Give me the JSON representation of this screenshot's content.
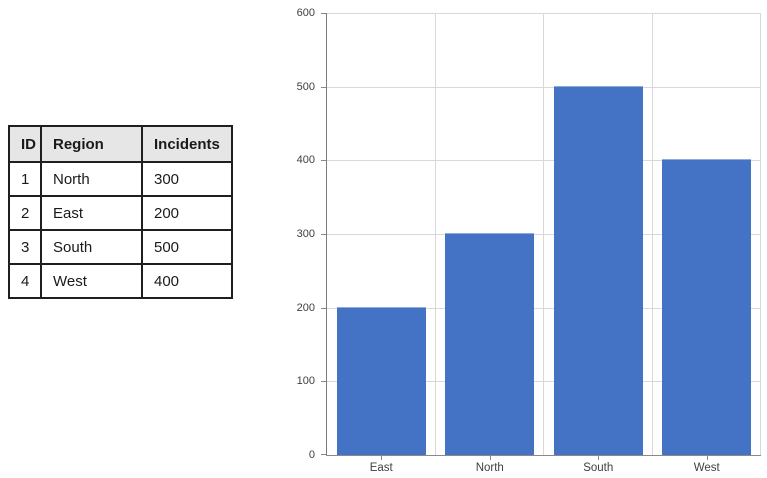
{
  "table": {
    "columns": [
      "ID",
      "Region",
      "Incidents"
    ],
    "rows": [
      [
        "1",
        "North",
        "300"
      ],
      [
        "2",
        "East",
        "200"
      ],
      [
        "3",
        "South",
        "500"
      ],
      [
        "4",
        "West",
        "400"
      ]
    ],
    "header_bg": "#e7e6e6",
    "border_color": "#1f1f1f"
  },
  "chart_data": {
    "type": "bar",
    "categories": [
      "East",
      "North",
      "South",
      "West"
    ],
    "values": [
      200,
      300,
      500,
      400
    ],
    "title": "",
    "xlabel": "",
    "ylabel": "",
    "ylim": [
      0,
      600
    ],
    "yticks": [
      0,
      100,
      200,
      300,
      400,
      500,
      600
    ],
    "grid": true,
    "legend_position": "none",
    "bar_color": "#4472c4",
    "bar_edge_color": "#8faadc",
    "gridline_color": "#d9d9d9",
    "axis_color": "#898989",
    "tick_label_color": "#404040"
  }
}
